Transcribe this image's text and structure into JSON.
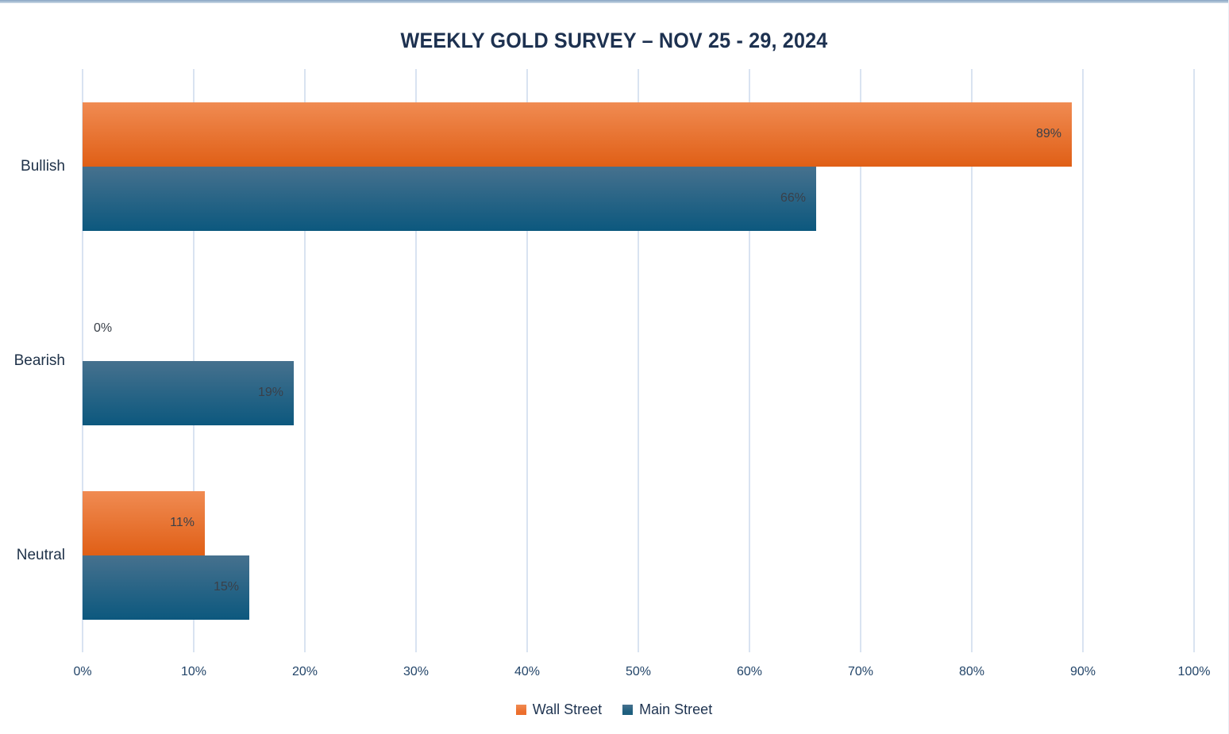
{
  "page": {
    "background_color": "#ffffff",
    "top_border_color": "#8aa7c4"
  },
  "chart_data": {
    "type": "bar",
    "orientation": "horizontal",
    "title": "WEEKLY GOLD SURVEY – NOV 25 - 29, 2024",
    "title_color": "#1d3150",
    "categories": [
      "Bullish",
      "Bearish",
      "Neutral"
    ],
    "series": [
      {
        "name": "Wall Street",
        "values": [
          89,
          0,
          11
        ],
        "value_labels": [
          "89%",
          "0%",
          "11%"
        ],
        "bar_color_top": "#f08b52",
        "bar_color_bottom": "#e05f16",
        "legend_color": "#ec6e2d"
      },
      {
        "name": "Main Street",
        "values": [
          66,
          19,
          15
        ],
        "value_labels": [
          "66%",
          "19%",
          "15%"
        ],
        "bar_color_top": "#46718e",
        "bar_color_bottom": "#0c587e",
        "legend_color": "#1e5f7e"
      }
    ],
    "unit": "%",
    "x_axis": {
      "min": 0,
      "max": 100,
      "step": 10,
      "tick_labels": [
        "0%",
        "10%",
        "20%",
        "30%",
        "40%",
        "50%",
        "60%",
        "70%",
        "80%",
        "90%",
        "100%"
      ],
      "tick_color": "#234569"
    },
    "grid": true,
    "gridline_color": "#d9e3f1",
    "category_label_color": "#1e3148",
    "value_label_color": "#3a4049",
    "legend_position": "bottom",
    "legend_text_color": "#1e3350"
  }
}
